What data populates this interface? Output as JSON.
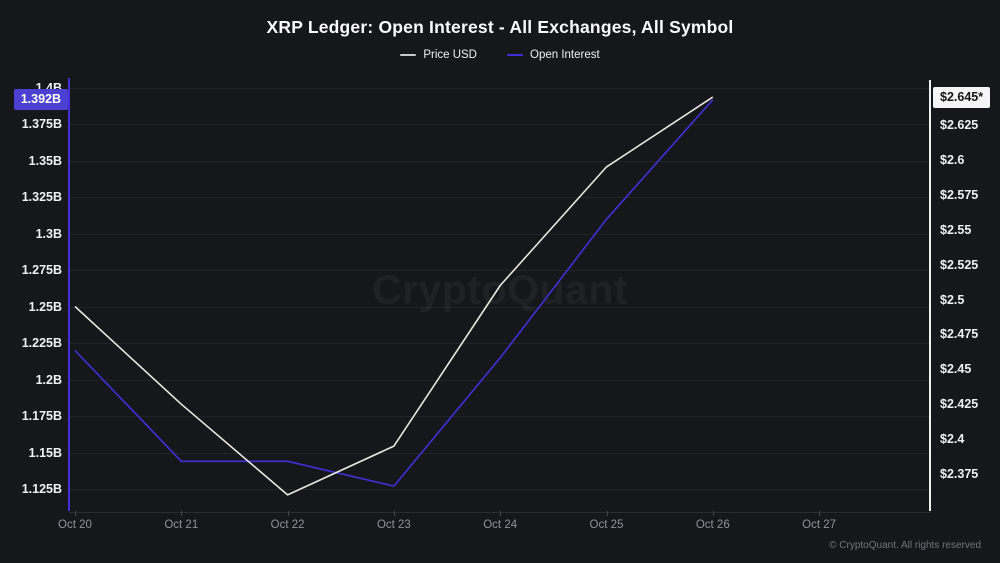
{
  "header": {
    "title": "XRP Ledger: Open Interest - All Exchanges, All Symbol",
    "legend": [
      {
        "label": "Price USD",
        "color": "#c9c9cd"
      },
      {
        "label": "Open Interest",
        "color": "#4130d8"
      }
    ]
  },
  "chart_data": {
    "type": "line",
    "title": "XRP Ledger: Open Interest - All Exchanges, All Symbol",
    "x_ticks": [
      "Oct 20",
      "Oct 21",
      "Oct 22",
      "Oct 23",
      "Oct 24",
      "Oct 25",
      "Oct 26",
      "Oct 27"
    ],
    "grid": "horizontal-only",
    "legend_position": "top-center",
    "series": [
      {
        "name": "Price USD",
        "axis": "right",
        "color": "#e9e7e3",
        "x": [
          "Oct 20",
          "Oct 21",
          "Oct 22",
          "Oct 23",
          "Oct 24",
          "Oct 25",
          "Oct 26"
        ],
        "values": [
          2.495,
          2.425,
          2.36,
          2.395,
          2.51,
          2.595,
          2.645
        ]
      },
      {
        "name": "Open Interest",
        "axis": "left",
        "color": "#4130d8",
        "x": [
          "Oct 20",
          "Oct 21",
          "Oct 22",
          "Oct 23",
          "Oct 24",
          "Oct 25",
          "Oct 26"
        ],
        "values": [
          1.22,
          1.144,
          1.144,
          1.127,
          1.215,
          1.31,
          1.392
        ]
      }
    ],
    "left_axis": {
      "unit": "B",
      "min": 1.125,
      "max": 1.4,
      "tick_labels": [
        "1.4B",
        "1.375B",
        "1.35B",
        "1.325B",
        "1.3B",
        "1.275B",
        "1.25B",
        "1.225B",
        "1.2B",
        "1.175B",
        "1.15B",
        "1.125B"
      ],
      "tick_values": [
        1.4,
        1.375,
        1.35,
        1.325,
        1.3,
        1.275,
        1.25,
        1.225,
        1.2,
        1.175,
        1.15,
        1.125
      ],
      "axis_color": "#4130d8",
      "current_badge": {
        "label": "1.392B",
        "value": 1.392,
        "bg": "#4c40d2",
        "text_color": "#ffffff"
      }
    },
    "right_axis": {
      "unit": "$",
      "min": 2.375,
      "max": 2.625,
      "tick_labels": [
        "$2.625",
        "$2.6",
        "$2.575",
        "$2.55",
        "$2.525",
        "$2.5",
        "$2.475",
        "$2.45",
        "$2.425",
        "$2.4",
        "$2.375"
      ],
      "tick_values": [
        2.625,
        2.6,
        2.575,
        2.55,
        2.525,
        2.5,
        2.475,
        2.45,
        2.425,
        2.4,
        2.375
      ],
      "axis_color": "#f0f0f0",
      "current_badge": {
        "label": "$2.645*",
        "value": 2.645,
        "bg": "#f5f5f5",
        "text_color": "#141414"
      }
    }
  },
  "watermark": "CryptoQuant",
  "footer": "© CryptoQuant. All rights reserved",
  "colors": {
    "background": "#16171b",
    "gridline": "rgba(255,255,255,0.055)",
    "tick_label": "#eef0f2",
    "x_label": "#8f939b"
  }
}
